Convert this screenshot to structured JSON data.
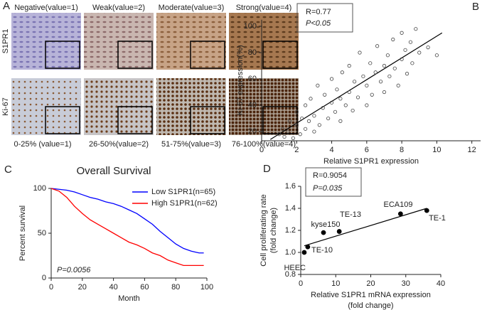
{
  "panel_labels": [
    "A",
    "B",
    "C",
    "D"
  ],
  "ihc_panel": {
    "column_titles": [
      "Negative(value=1)",
      "Weak(value=2)",
      "Moderate(value=3)",
      "Strong(value=4)"
    ],
    "row_labels": [
      "S1PR1",
      "Ki-67"
    ],
    "bottom_labels": [
      "0-25% (value=1)",
      "26-50%(value=2)",
      "51-75%(value=3)",
      "76-100%(value=4)"
    ]
  },
  "chart_data": [
    {
      "type": "scatter",
      "xlabel": "Relative S1PR1 expression",
      "ylabel": "Ki-67 expression(%)",
      "annotations": [
        "R=0.77",
        "P<0.05"
      ],
      "xlim": [
        0,
        12.5
      ],
      "ylim": [
        13,
        105
      ],
      "xticks": [
        0,
        2,
        4,
        6,
        8,
        10,
        12
      ],
      "yticks": [
        20,
        40,
        60,
        80,
        100
      ],
      "color": "#444444",
      "marker": "open",
      "x": [
        1,
        1.2,
        1.3,
        1.5,
        1.6,
        1.8,
        2,
        2,
        2.2,
        2.3,
        2.5,
        2.5,
        2.7,
        2.8,
        3,
        3,
        3.2,
        3.3,
        3.5,
        3.6,
        3.8,
        4,
        4,
        4.2,
        4.3,
        4.5,
        4.5,
        4.6,
        4.8,
        5,
        5,
        5.2,
        5.3,
        5.5,
        5.6,
        5.8,
        6,
        6,
        6.2,
        6.3,
        6.5,
        6.6,
        6.8,
        7,
        7,
        7.2,
        7.3,
        7.5,
        7.6,
        7.8,
        8,
        8,
        8.2,
        8.3,
        8.5,
        8.6,
        8.8,
        9,
        9.5,
        10
      ],
      "values": [
        18,
        22,
        16,
        20,
        28,
        15,
        25,
        35,
        18,
        30,
        22,
        40,
        28,
        45,
        20,
        32,
        55,
        25,
        38,
        48,
        30,
        42,
        60,
        35,
        52,
        28,
        45,
        65,
        40,
        50,
        70,
        36,
        58,
        46,
        80,
        62,
        40,
        55,
        72,
        48,
        65,
        85,
        58,
        70,
        50,
        78,
        62,
        90,
        68,
        55,
        75,
        95,
        82,
        64,
        88,
        72,
        98,
        80,
        84,
        78
      ],
      "fit_line": {
        "x": [
          0.5,
          10.3
        ],
        "y": [
          14,
          95
        ]
      }
    },
    {
      "type": "line",
      "title": "Overall Survival",
      "xlabel": "Month",
      "ylabel": "Percent survival",
      "annotations": [
        "P=0.0056"
      ],
      "legend": "upper right",
      "xlim": [
        0,
        100
      ],
      "ylim": [
        0,
        100
      ],
      "xticks": [
        0,
        20,
        40,
        60,
        80,
        100
      ],
      "yticks": [
        0,
        50,
        100
      ],
      "series": [
        {
          "name": "Low S1PR1(n=65)",
          "color": "#0000ff",
          "x": [
            0,
            10,
            15,
            20,
            25,
            30,
            35,
            40,
            45,
            50,
            55,
            60,
            65,
            70,
            75,
            80,
            85,
            90,
            95,
            98
          ],
          "values": [
            100,
            98,
            96,
            93,
            90,
            88,
            85,
            83,
            80,
            76,
            72,
            66,
            60,
            52,
            45,
            38,
            33,
            30,
            28,
            28
          ]
        },
        {
          "name": "High S1PR1(n=62)",
          "color": "#ff0000",
          "x": [
            0,
            5,
            10,
            15,
            20,
            25,
            30,
            35,
            40,
            45,
            50,
            55,
            60,
            65,
            70,
            75,
            80,
            85,
            98
          ],
          "values": [
            100,
            97,
            90,
            80,
            72,
            65,
            60,
            55,
            50,
            45,
            40,
            37,
            33,
            28,
            25,
            20,
            17,
            14,
            14
          ]
        }
      ]
    },
    {
      "type": "scatter",
      "xlabel": "Relative S1PR1 mRNA expression",
      "xlabel2": "(fold change)",
      "ylabel": "Cell proliferating rate",
      "ylabel2": "(fold change)",
      "annotations": [
        "R=0.9054",
        "P=0.035"
      ],
      "xlim": [
        0,
        40
      ],
      "ylim": [
        0.8,
        1.6
      ],
      "xticks": [
        0,
        10,
        20,
        30,
        40
      ],
      "yticks": [
        {
          "value": 0.8,
          "label": "0.8"
        },
        {
          "value": 1.0,
          "label": "1.0"
        },
        {
          "value": 1.2,
          "label": "1.2"
        },
        {
          "value": 1.4,
          "label": "1.4"
        },
        {
          "value": 1.6,
          "label": "1.6"
        }
      ],
      "color": "#000000",
      "marker": "filled",
      "point_labels": [
        "HEEC",
        "TE-10",
        "kyse150",
        "TE-13",
        "ECA109",
        "TE-1"
      ],
      "x": [
        1,
        2,
        6.5,
        11,
        28.5,
        36
      ],
      "values": [
        1.0,
        1.05,
        1.18,
        1.19,
        1.35,
        1.38
      ],
      "fit_line": {
        "x": [
          1,
          36
        ],
        "y": [
          1.06,
          1.4
        ]
      }
    }
  ]
}
